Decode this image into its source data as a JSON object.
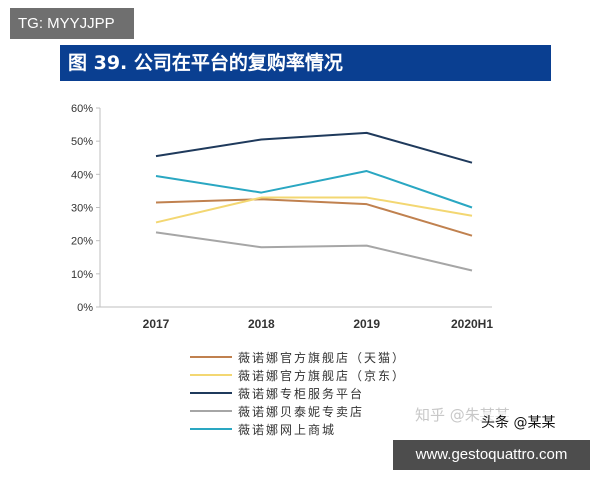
{
  "overlay": {
    "tag_text": "TG: MYYJJPP",
    "watermark_zhihu": "知乎 @朱某某",
    "watermark_toutiao": "头条 @某某",
    "url_text": "www.gestoquattro.com"
  },
  "figure": {
    "title": "图 39. 公司在平台的复购率情况",
    "title_bg": "#0a3f91"
  },
  "chart_data": {
    "type": "line",
    "categories": [
      "2017",
      "2018",
      "2019",
      "2020H1"
    ],
    "y_ticks": [
      "0%",
      "10%",
      "20%",
      "30%",
      "40%",
      "50%",
      "60%"
    ],
    "ylim": [
      0,
      60
    ],
    "unit": "%",
    "grid": false,
    "legend_position": "bottom",
    "series": [
      {
        "name": "薇诺娜官方旗舰店（天猫）",
        "color": "#c0814f",
        "values": [
          31.5,
          32.5,
          31,
          21.5
        ]
      },
      {
        "name": "薇诺娜官方旗舰店（京东）",
        "color": "#f3d772",
        "values": [
          25.5,
          33,
          33,
          27.5
        ]
      },
      {
        "name": "薇诺娜专柜服务平台",
        "color": "#1f3a5c",
        "values": [
          45.5,
          50.5,
          52.5,
          43.5
        ]
      },
      {
        "name": "薇诺娜贝泰妮专卖店",
        "color": "#a6a6a6",
        "values": [
          22.5,
          18,
          18.5,
          11
        ]
      },
      {
        "name": "薇诺娜网上商城",
        "color": "#2aa7c2",
        "values": [
          39.5,
          34.5,
          41,
          30
        ]
      }
    ]
  }
}
